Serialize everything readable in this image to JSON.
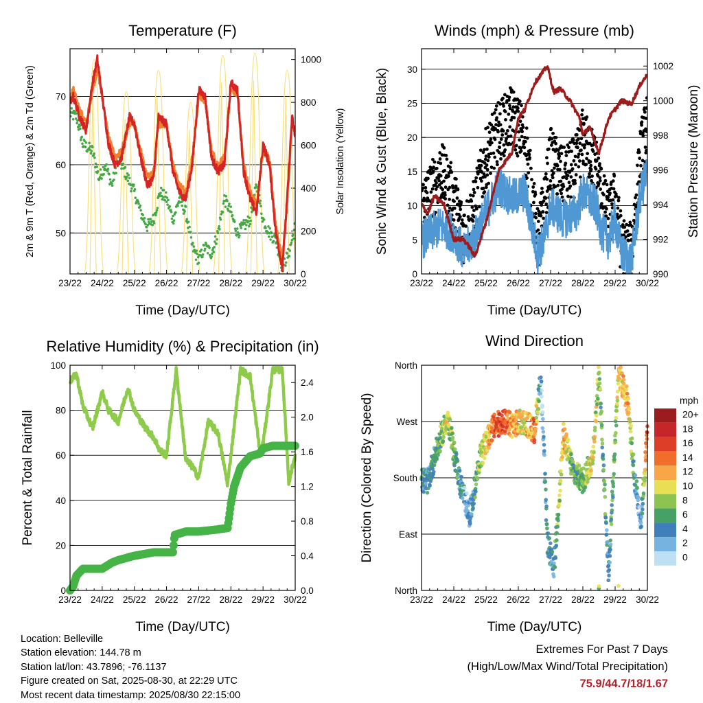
{
  "chart_data": [
    {
      "type": "line",
      "title": "Temperature (F)",
      "xlabel": "Time (Day/UTC)",
      "ylabel": "2m & 9m T (Red, Orange) & 2m Td (Green)",
      "ylabel_right": "Solar Insolation (Yellow)",
      "x_ticks": [
        "23/22",
        "24/22",
        "25/22",
        "26/22",
        "27/22",
        "28/22",
        "29/22",
        "30/22"
      ],
      "ylim": [
        44,
        77
      ],
      "y_ticks": [
        50,
        60,
        70
      ],
      "ylim_right": [
        0,
        1050
      ],
      "y_ticks_right": [
        0,
        200,
        400,
        600,
        800,
        1000
      ],
      "grid": "horizontal",
      "series": [
        {
          "name": "2m T",
          "color": "#d42424",
          "axis": "left",
          "x": [
            0,
            0.1,
            0.3,
            0.5,
            0.7,
            0.85,
            1.0,
            1.2,
            1.4,
            1.6,
            1.85,
            2.0,
            2.2,
            2.4,
            2.6,
            2.75,
            3.0,
            3.2,
            3.4,
            3.6,
            3.8,
            4.0,
            4.2,
            4.4,
            4.6,
            4.8,
            5.0,
            5.2,
            5.4,
            5.6,
            5.8,
            6.0,
            6.2,
            6.4,
            6.6,
            6.75,
            6.9,
            7.0
          ],
          "y": [
            69,
            70,
            67,
            65,
            72,
            75.5,
            70,
            63,
            60,
            61,
            67,
            66,
            61,
            57,
            58,
            67,
            66,
            59,
            56,
            55,
            60,
            71,
            70,
            61,
            59,
            60,
            72,
            71,
            59,
            55,
            53,
            63,
            60,
            50,
            45,
            55,
            67,
            64
          ]
        },
        {
          "name": "9m T",
          "color": "#f08030",
          "axis": "left",
          "x": [
            0,
            0.1,
            0.3,
            0.5,
            0.7,
            0.85,
            1.0,
            1.2,
            1.4,
            1.6,
            1.85,
            2.0,
            2.2,
            2.4,
            2.6,
            2.75,
            3.0,
            3.2,
            3.4,
            3.6,
            3.8,
            4.0,
            4.2,
            4.4,
            4.6,
            4.8,
            5.0,
            5.2,
            5.4,
            5.6,
            5.8,
            6.0,
            6.2,
            6.4,
            6.6,
            6.75,
            6.9,
            7.0
          ],
          "y": [
            70,
            71,
            68,
            66,
            71,
            74,
            70,
            64,
            61,
            62,
            66,
            66,
            62,
            58,
            59,
            66,
            66,
            60,
            57,
            56,
            61,
            70,
            69.5,
            62,
            60,
            61,
            71,
            70.5,
            60,
            56,
            54,
            62,
            61,
            51,
            46,
            54,
            66,
            65
          ]
        },
        {
          "name": "2m Td",
          "color": "#45a845",
          "axis": "left",
          "x": [
            0,
            0.2,
            0.4,
            0.7,
            0.9,
            1.1,
            1.3,
            1.5,
            1.8,
            2.0,
            2.2,
            2.4,
            2.6,
            2.8,
            3.0,
            3.2,
            3.4,
            3.6,
            3.8,
            4.0,
            4.2,
            4.4,
            4.6,
            4.8,
            5.0,
            5.2,
            5.4,
            5.6,
            5.8,
            6.0,
            6.2,
            6.4,
            6.6,
            6.8,
            7.0
          ],
          "y": [
            67.5,
            67,
            63,
            62,
            58,
            60,
            57,
            61,
            58,
            56,
            53,
            51,
            52,
            56,
            55,
            52,
            55,
            53,
            48,
            46,
            48,
            47,
            50,
            55,
            53,
            50,
            51,
            52,
            57,
            52,
            50,
            49,
            45,
            47,
            51
          ]
        },
        {
          "name": "Solar Insolation",
          "color": "#f7e07a",
          "axis": "right",
          "peaks_x": [
            0.75,
            1.75,
            2.75,
            3.75,
            4.75,
            5.75,
            6.75
          ],
          "peaks": [
            1000,
            850,
            950,
            800,
            1020,
            1030,
            950
          ]
        }
      ]
    },
    {
      "type": "scatter",
      "title": "Winds (mph) & Pressure (mb)",
      "xlabel": "Time (Day/UTC)",
      "ylabel": "Sonic Wind & Gust (Blue, Black)",
      "ylabel_right": "Station Pressure (Maroon)",
      "x_ticks": [
        "23/22",
        "24/22",
        "25/22",
        "26/22",
        "27/22",
        "28/22",
        "29/22",
        "30/22"
      ],
      "ylim": [
        0,
        33
      ],
      "y_ticks": [
        0,
        5,
        10,
        15,
        20,
        25,
        30
      ],
      "ylim_right": [
        990,
        1003
      ],
      "y_ticks_right": [
        990,
        992,
        994,
        996,
        998,
        1000,
        1002
      ],
      "grid": "horizontal",
      "series": [
        {
          "name": "Wind",
          "color": "#4f98d4",
          "x": [
            0,
            0.3,
            0.6,
            1.0,
            1.3,
            1.6,
            2.0,
            2.4,
            2.8,
            3.2,
            3.6,
            3.8,
            4.0,
            4.4,
            4.8,
            5.0,
            5.4,
            5.6,
            5.8,
            6.0,
            6.2,
            6.5,
            6.8,
            7.0
          ],
          "y": [
            5,
            6,
            7,
            6,
            3,
            5,
            9,
            13,
            11,
            12,
            3,
            5,
            10,
            8,
            9,
            12,
            10,
            6,
            5,
            8,
            3,
            2,
            12,
            15
          ]
        },
        {
          "name": "Gust",
          "color": "#000000",
          "x": [
            0,
            0.3,
            0.6,
            1.0,
            1.3,
            1.6,
            2.0,
            2.4,
            2.8,
            3.2,
            3.6,
            3.8,
            4.0,
            4.4,
            4.8,
            5.0,
            5.4,
            5.6,
            5.8,
            6.0,
            6.2,
            6.5,
            6.8,
            7.0
          ],
          "y": [
            10,
            12,
            15,
            11,
            6,
            9,
            17,
            21,
            23,
            20,
            5,
            10,
            17,
            14,
            16,
            20,
            16,
            11,
            8,
            11,
            4,
            3,
            18,
            22
          ]
        },
        {
          "name": "Pressure",
          "color": "#9e1b1b",
          "x": [
            0,
            0.2,
            0.4,
            0.7,
            1.0,
            1.3,
            1.5,
            1.65,
            2.0,
            2.4,
            2.8,
            3.0,
            3.2,
            3.5,
            3.9,
            4.1,
            4.3,
            4.6,
            4.9,
            5.0,
            5.2,
            5.5,
            5.8,
            6.0,
            6.2,
            6.5,
            6.8,
            7.0
          ],
          "y": [
            994,
            993.5,
            994.5,
            994,
            992,
            992,
            991.5,
            991,
            993,
            996,
            997,
            999,
            999.5,
            1001,
            1002,
            1000.5,
            1000.7,
            1000,
            999,
            998,
            998.5,
            997,
            999,
            999.5,
            1000,
            999.8,
            1001,
            1001.5
          ]
        }
      ]
    },
    {
      "type": "line",
      "title": "Relative Humidity (%) & Precipitation (in)",
      "xlabel": "Time (Day/UTC)",
      "ylabel": "Percent & Total Rainfall",
      "x_ticks": [
        "23/22",
        "24/22",
        "25/22",
        "26/22",
        "27/22",
        "28/22",
        "29/22",
        "30/22"
      ],
      "ylim": [
        0,
        100
      ],
      "y_ticks": [
        0,
        20,
        40,
        60,
        80,
        100
      ],
      "ylim_right": [
        0,
        2.6
      ],
      "y_ticks_right": [
        "0.0",
        "0.4",
        "0.8",
        "1.2",
        "1.6",
        "2.0",
        "2.4"
      ],
      "grid": "horizontal",
      "series": [
        {
          "name": "Relative Humidity",
          "color": "#8fcb4a",
          "axis": "left",
          "x": [
            0,
            0.2,
            0.4,
            0.7,
            1.0,
            1.2,
            1.5,
            1.8,
            2.0,
            2.3,
            2.6,
            2.8,
            3.0,
            3.3,
            3.6,
            3.8,
            4.0,
            4.3,
            4.6,
            4.9,
            5.0,
            5.3,
            5.6,
            5.9,
            6.0,
            6.3,
            6.6,
            6.8,
            7.0
          ],
          "y": [
            93,
            96,
            82,
            72,
            88,
            80,
            75,
            90,
            80,
            73,
            68,
            62,
            60,
            98,
            58,
            55,
            50,
            75,
            70,
            47,
            60,
            98,
            95,
            62,
            65,
            98,
            98,
            48,
            60
          ]
        },
        {
          "name": "Precipitation",
          "color": "#46b346",
          "axis": "right",
          "x": [
            0,
            0.1,
            0.2,
            0.4,
            1.0,
            1.3,
            1.5,
            2.0,
            2.3,
            2.6,
            3.0,
            3.2,
            3.25,
            3.6,
            4.0,
            4.5,
            4.9,
            5.0,
            5.1,
            5.3,
            5.6,
            5.9,
            6.0,
            6.3,
            7.0
          ],
          "y": [
            0,
            0.05,
            0.17,
            0.25,
            0.25,
            0.32,
            0.35,
            0.4,
            0.42,
            0.44,
            0.44,
            0.44,
            0.64,
            0.68,
            0.68,
            0.7,
            0.72,
            1.0,
            1.2,
            1.42,
            1.55,
            1.58,
            1.64,
            1.67,
            1.67
          ]
        }
      ]
    },
    {
      "type": "scatter",
      "title": "Wind Direction",
      "xlabel": "Time (Day/UTC)",
      "ylabel": "Direction (Colored By Speed)",
      "x_ticks": [
        "23/22",
        "24/22",
        "25/22",
        "26/22",
        "27/22",
        "28/22",
        "29/22",
        "30/22"
      ],
      "ylim": [
        0,
        360
      ],
      "y_ticks": [
        "North",
        "East",
        "South",
        "West",
        "North"
      ],
      "grid": "horizontal",
      "legend": {
        "title": "mph",
        "placement": "right",
        "labels": [
          "20+",
          "18",
          "16",
          "14",
          "12",
          "10",
          "8",
          "6",
          "4",
          "2",
          "0"
        ],
        "colors": [
          "#9b1c1f",
          "#c4262a",
          "#dc3e27",
          "#f06d2c",
          "#f9a746",
          "#e8df55",
          "#8dc451",
          "#47a165",
          "#3f7fba",
          "#77b3e0",
          "#bde0f5"
        ]
      },
      "series": [
        {
          "name": "Wind Direction",
          "x": [
            0.2,
            0.5,
            0.8,
            1.2,
            1.5,
            1.8,
            2.2,
            2.5,
            2.8,
            3.2,
            3.5,
            3.7,
            3.9,
            4.1,
            4.4,
            4.7,
            5.0,
            5.3,
            5.5,
            5.8,
            6.1,
            6.4,
            6.6,
            6.8,
            7.0
          ],
          "y": [
            175,
            230,
            275,
            170,
            120,
            210,
            260,
            270,
            265,
            270,
            255,
            340,
            80,
            30,
            250,
            190,
            175,
            210,
            350,
            25,
            350,
            300,
            180,
            110,
            250
          ],
          "speed": [
            4,
            6,
            10,
            4,
            2,
            8,
            14,
            16,
            12,
            10,
            14,
            2,
            4,
            4,
            12,
            6,
            8,
            10,
            8,
            4,
            10,
            12,
            4,
            2,
            16
          ]
        }
      ]
    }
  ],
  "info": {
    "location": "Location: Belleville",
    "elevation": "Station elevation: 144.78 m",
    "latlon": "Station lat/lon: 43.7896; -76.1137",
    "created": "Figure created on Sat, 2025-08-30, at 22:29 UTC",
    "latest": "Most recent data timestamp: 2025/08/30 22:15:00"
  },
  "extremes": {
    "heading": "Extremes For Past 7 Days",
    "subheading": "(High/Low/Max Wind/Total Precipitation)",
    "values": "75.9/44.7/18/1.67"
  }
}
